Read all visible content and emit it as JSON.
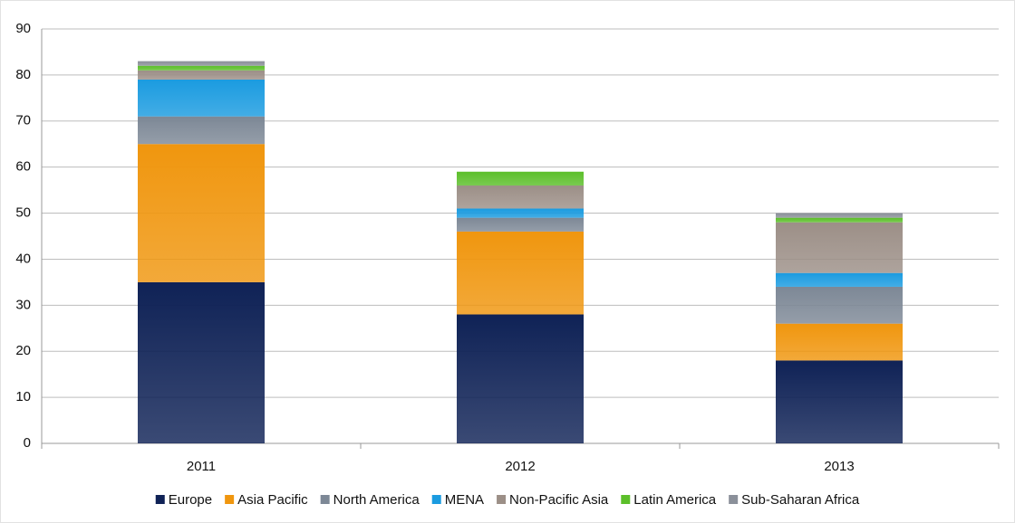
{
  "chart_data": {
    "type": "stacked_bar",
    "categories": [
      "2011",
      "2012",
      "2013"
    ],
    "series": [
      {
        "name": "Europe",
        "color": "#0f2256",
        "values": [
          35,
          28,
          18
        ]
      },
      {
        "name": "Asia Pacific",
        "color": "#f0960e",
        "values": [
          30,
          18,
          8
        ]
      },
      {
        "name": "North America",
        "color": "#7d8896",
        "values": [
          6,
          3,
          8
        ]
      },
      {
        "name": "MENA",
        "color": "#1a9be0",
        "values": [
          8,
          2,
          3
        ]
      },
      {
        "name": "Non-Pacific Asia",
        "color": "#9c8f87",
        "values": [
          2,
          5,
          11
        ]
      },
      {
        "name": "Latin America",
        "color": "#5cbf2a",
        "values": [
          1,
          3,
          1
        ]
      },
      {
        "name": "Sub-Saharan Africa",
        "color": "#8b909a",
        "values": [
          1,
          0,
          1
        ]
      }
    ],
    "ylim": [
      0,
      90
    ],
    "yticks": [
      0,
      10,
      20,
      30,
      40,
      50,
      60,
      70,
      80,
      90
    ],
    "grid": true
  }
}
